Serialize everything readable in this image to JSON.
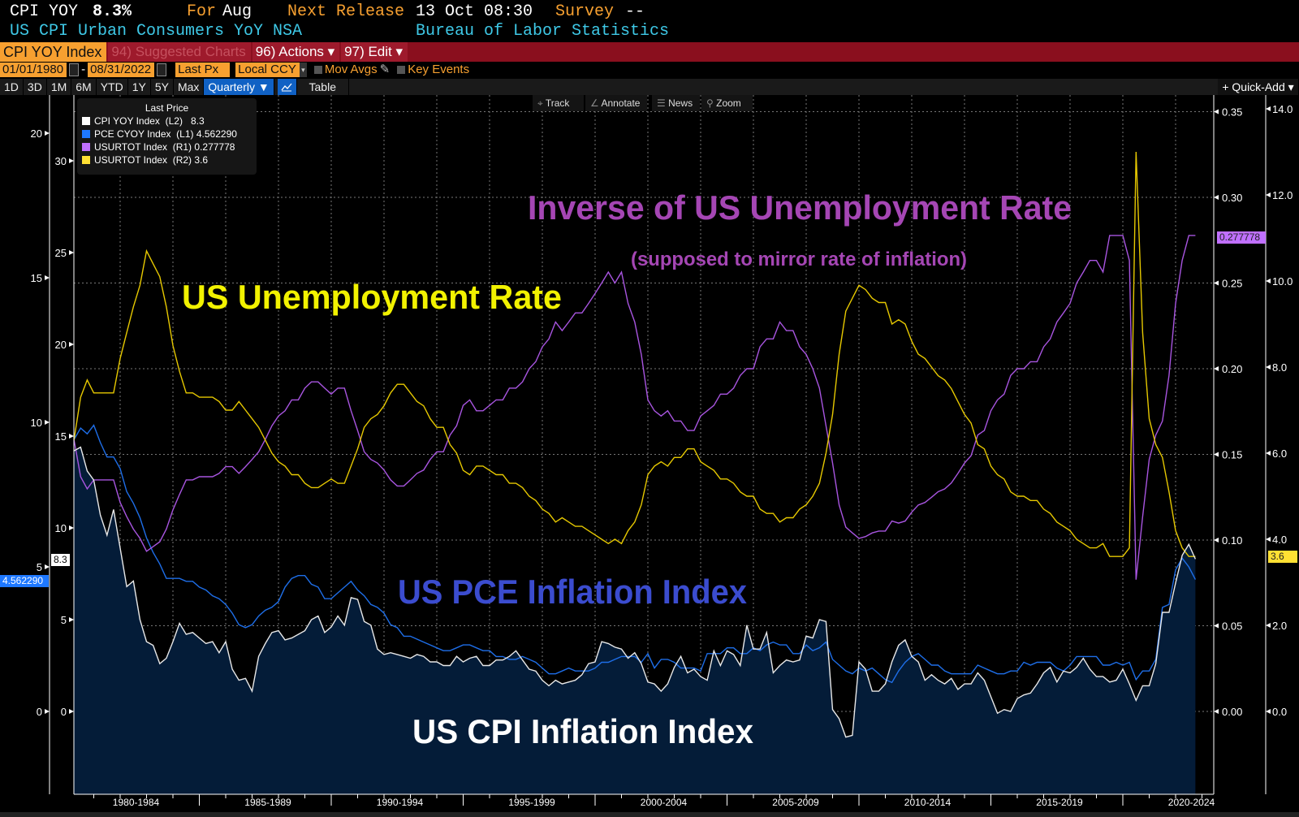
{
  "header": {
    "ticker": "CPI YOY",
    "last": "8.3%",
    "for_label": "For",
    "for_value": "Aug",
    "next_release_label": "Next Release",
    "next_release_value": "13 Oct 08:30",
    "survey_label": "Survey",
    "survey_value": "--",
    "description": "US CPI Urban Consumers YoY NSA",
    "source": "Bureau of Labor Statistics"
  },
  "menubar": {
    "security": "CPI YOY Index",
    "suggested": "94) Suggested Charts",
    "actions": "96) Actions ▾",
    "edit": "97) Edit ▾"
  },
  "controls": {
    "start_date": "01/01/1980",
    "dash": "-",
    "end_date": "08/31/2022",
    "field": "Last Px",
    "currency": "Local CCY",
    "mov_avgs": "Mov Avgs",
    "key_events": "Key Events"
  },
  "periods": [
    "1D",
    "3D",
    "1M",
    "6M",
    "YTD",
    "1Y",
    "5Y",
    "Max"
  ],
  "frequency": "Quarterly ▼",
  "table_label": "Table",
  "quick_add": "+ Quick-Add ▾",
  "chart_tools": [
    "Track",
    "Annotate",
    "News",
    "Zoom"
  ],
  "colors": {
    "cpi": "#e8e8e8",
    "cpi_fill": "#041c38",
    "pce": "#1e6ee8",
    "inverse": "#a855e0",
    "unemp": "#e6c800",
    "ann_purple": "#a546b4",
    "ann_yellow": "#f2f200",
    "ann_blue": "#3b4ccf",
    "ann_white": "#ffffff"
  },
  "chart_data": {
    "type": "line",
    "frequency": "quarterly",
    "start_quarter": "1980Q1",
    "end_quarter": "2022Q3",
    "legend": {
      "title": "Last Price",
      "placement": "top-left",
      "entries": [
        {
          "name": "CPI YOY Index",
          "axis": "(L2)",
          "last": "8.3"
        },
        {
          "name": "PCE CYOY Index",
          "axis": "(L1)",
          "last": "4.562290"
        },
        {
          "name": "USURTOT Index",
          "axis": "(R1)",
          "last": "0.277778"
        },
        {
          "name": "USURTOT Index",
          "axis": "(R2)",
          "last": "3.6"
        }
      ]
    },
    "last_value_tags": {
      "cpi": "8.3",
      "pce": "4.562290",
      "inverse": "0.277778",
      "unemp": "3.6"
    },
    "axes": {
      "L1": {
        "series": "pce",
        "ticks": [
          "20",
          "15",
          "10",
          "5",
          "0"
        ],
        "values": [
          20,
          15,
          10,
          5,
          0
        ]
      },
      "L2": {
        "series": "cpi",
        "ticks": [
          "30",
          "25",
          "20",
          "15",
          "10",
          "5",
          "0"
        ],
        "values": [
          30,
          25,
          20,
          15,
          10,
          5,
          0
        ]
      },
      "R1": {
        "series": "inverse",
        "ticks": [
          "0.35",
          "0.30",
          "0.25",
          "0.20",
          "0.15",
          "0.10",
          "0.05",
          "0.00"
        ],
        "values": [
          0.35,
          0.3,
          0.25,
          0.2,
          0.15,
          0.1,
          0.05,
          0.0
        ]
      },
      "R2": {
        "series": "unemp",
        "ticks": [
          "14.0",
          "12.0",
          "10.0",
          "8.0",
          "6.0",
          "4.0",
          "2.0",
          "0.0"
        ],
        "values": [
          14,
          12,
          10,
          8,
          6,
          4,
          2,
          0
        ]
      },
      "x": {
        "ticks": [
          "1980-1984",
          "1985-1989",
          "1990-1994",
          "1995-1999",
          "2000-2004",
          "2005-2009",
          "2010-2014",
          "2015-2019",
          "2020-2024"
        ],
        "starts": [
          1980,
          1985,
          1990,
          1995,
          2000,
          2005,
          2010,
          2015,
          2020
        ]
      }
    },
    "grid": true,
    "annotations": [
      {
        "text": "Inverse of US Unemployment Rate",
        "color": "ann_purple"
      },
      {
        "text": "(supposed to mirror rate of inflation)",
        "color": "ann_purple"
      },
      {
        "text": "US Unemployment Rate",
        "color": "ann_yellow"
      },
      {
        "text": "US PCE Inflation Index",
        "color": "ann_blue"
      },
      {
        "text": "US CPI Inflation Index",
        "color": "ann_white"
      }
    ],
    "series": {
      "cpi": {
        "name": "CPI YOY Index",
        "values": [
          14.2,
          14.4,
          13.1,
          12.6,
          10.7,
          9.6,
          11.0,
          8.9,
          6.8,
          7.1,
          5.0,
          3.8,
          3.6,
          2.6,
          2.9,
          3.8,
          4.8,
          4.2,
          4.3,
          4.0,
          3.7,
          3.8,
          3.2,
          3.8,
          2.3,
          1.7,
          1.8,
          1.1,
          3.0,
          3.7,
          4.3,
          4.4,
          3.9,
          4.0,
          4.2,
          4.4,
          5.0,
          5.2,
          4.3,
          4.6,
          5.2,
          4.7,
          6.2,
          6.1,
          4.9,
          4.7,
          3.4,
          3.1,
          3.2,
          3.1,
          3.0,
          2.9,
          3.1,
          3.0,
          2.7,
          2.7,
          2.5,
          2.5,
          3.0,
          2.7,
          2.9,
          3.0,
          2.5,
          2.5,
          2.8,
          2.8,
          3.0,
          3.3,
          2.8,
          2.3,
          2.2,
          1.7,
          1.4,
          1.7,
          1.5,
          1.6,
          1.7,
          2.0,
          2.6,
          2.7,
          3.8,
          3.7,
          3.5,
          3.4,
          2.9,
          3.2,
          2.6,
          1.6,
          1.5,
          1.1,
          1.5,
          2.4,
          3.0,
          2.1,
          2.3,
          1.9,
          1.7,
          3.3,
          2.5,
          3.3,
          3.1,
          2.5,
          4.7,
          3.4,
          3.4,
          4.3,
          2.1,
          2.5,
          2.8,
          2.7,
          2.8,
          4.1,
          4.0,
          5.0,
          4.9,
          0.1,
          -0.4,
          -1.4,
          -1.3,
          2.7,
          2.3,
          1.1,
          1.1,
          1.5,
          2.7,
          3.6,
          3.9,
          3.0,
          2.7,
          1.7,
          2.0,
          1.7,
          1.5,
          1.8,
          1.2,
          1.5,
          1.5,
          2.1,
          1.7,
          0.8,
          -0.1,
          0.1,
          0.0,
          0.7,
          0.9,
          1.0,
          1.5,
          2.1,
          2.4,
          1.6,
          2.2,
          2.1,
          2.4,
          2.9,
          2.3,
          1.9,
          1.9,
          1.6,
          1.7,
          2.3,
          1.5,
          0.6,
          1.4,
          1.4,
          2.6,
          5.4,
          5.4,
          7.0,
          8.5,
          9.1,
          8.3
        ]
      },
      "pce": {
        "name": "PCE CYOY Index",
        "values": [
          9.4,
          9.8,
          9.6,
          9.9,
          9.3,
          8.8,
          8.8,
          8.4,
          7.6,
          7.2,
          6.7,
          6.0,
          5.5,
          5.1,
          4.6,
          4.6,
          4.6,
          4.5,
          4.5,
          4.3,
          4.2,
          4.0,
          3.9,
          3.7,
          3.4,
          3.0,
          2.9,
          3.0,
          3.3,
          3.5,
          3.6,
          3.8,
          4.3,
          4.6,
          4.7,
          4.7,
          4.4,
          4.3,
          3.9,
          3.9,
          4.1,
          4.3,
          4.5,
          4.2,
          4.0,
          3.7,
          3.6,
          3.4,
          3.0,
          2.9,
          2.6,
          2.6,
          2.5,
          2.4,
          2.3,
          2.2,
          2.1,
          2.1,
          2.2,
          2.3,
          2.3,
          2.2,
          2.1,
          2.1,
          1.9,
          1.9,
          1.8,
          1.8,
          1.9,
          1.8,
          1.7,
          1.5,
          1.3,
          1.3,
          1.4,
          1.5,
          1.4,
          1.4,
          1.4,
          1.5,
          1.7,
          1.7,
          1.8,
          1.9,
          1.9,
          1.9,
          1.7,
          2.0,
          1.5,
          1.8,
          1.8,
          1.7,
          1.5,
          1.5,
          1.5,
          1.4,
          2.0,
          2.0,
          2.0,
          2.2,
          2.2,
          2.0,
          2.0,
          2.2,
          2.1,
          2.3,
          2.4,
          2.3,
          2.3,
          2.0,
          2.0,
          2.3,
          2.1,
          2.2,
          2.4,
          1.8,
          1.6,
          1.4,
          1.3,
          1.5,
          1.4,
          1.5,
          1.3,
          1.1,
          1.0,
          1.4,
          1.7,
          1.9,
          2.0,
          1.8,
          1.6,
          1.6,
          1.4,
          1.3,
          1.3,
          1.3,
          1.3,
          1.6,
          1.5,
          1.4,
          1.3,
          1.3,
          1.4,
          1.4,
          1.7,
          1.6,
          1.7,
          1.7,
          1.7,
          1.5,
          1.4,
          1.6,
          1.9,
          1.9,
          1.9,
          1.9,
          1.6,
          1.6,
          1.7,
          1.6,
          1.7,
          1.1,
          1.4,
          1.4,
          1.8,
          3.6,
          3.7,
          4.9,
          5.3,
          5.0,
          4.56229
        ]
      },
      "unemp": {
        "name": "USURTOT Index",
        "values": [
          6.3,
          7.3,
          7.7,
          7.4,
          7.4,
          7.4,
          7.4,
          8.2,
          8.8,
          9.4,
          9.9,
          10.7,
          10.4,
          10.1,
          9.4,
          8.5,
          7.9,
          7.4,
          7.4,
          7.3,
          7.3,
          7.3,
          7.2,
          7.0,
          7.0,
          7.2,
          7.0,
          6.8,
          6.6,
          6.3,
          6.0,
          5.8,
          5.7,
          5.5,
          5.5,
          5.3,
          5.2,
          5.2,
          5.3,
          5.4,
          5.3,
          5.3,
          5.7,
          6.1,
          6.6,
          6.8,
          6.9,
          7.1,
          7.4,
          7.6,
          7.6,
          7.4,
          7.2,
          7.1,
          6.8,
          6.6,
          6.6,
          6.2,
          6.0,
          5.6,
          5.5,
          5.7,
          5.7,
          5.6,
          5.5,
          5.5,
          5.3,
          5.3,
          5.2,
          5.0,
          4.9,
          4.7,
          4.6,
          4.4,
          4.5,
          4.4,
          4.3,
          4.3,
          4.2,
          4.1,
          4.0,
          3.9,
          4.0,
          3.9,
          4.2,
          4.4,
          4.8,
          5.5,
          5.7,
          5.8,
          5.7,
          5.9,
          5.9,
          6.1,
          6.1,
          5.8,
          5.7,
          5.6,
          5.4,
          5.4,
          5.3,
          5.1,
          5.0,
          5.0,
          4.7,
          4.6,
          4.6,
          4.4,
          4.5,
          4.5,
          4.7,
          4.8,
          5.0,
          5.3,
          6.0,
          6.9,
          8.3,
          9.3,
          9.6,
          9.9,
          9.8,
          9.6,
          9.5,
          9.5,
          9.0,
          9.1,
          9.0,
          8.6,
          8.3,
          8.2,
          8.0,
          7.8,
          7.7,
          7.5,
          7.2,
          6.9,
          6.7,
          6.2,
          6.1,
          5.7,
          5.5,
          5.4,
          5.1,
          5.0,
          5.0,
          4.9,
          4.9,
          4.7,
          4.6,
          4.4,
          4.3,
          4.2,
          4.0,
          3.9,
          3.8,
          3.8,
          3.9,
          3.6,
          3.6,
          3.6,
          3.8,
          13.0,
          8.8,
          6.8,
          6.2,
          5.9,
          5.1,
          4.2,
          3.8,
          3.6,
          3.6
        ]
      },
      "inverse": {
        "name": "USURTOT Index (inverse, 1/x)",
        "derived_from": "unemp"
      }
    }
  }
}
